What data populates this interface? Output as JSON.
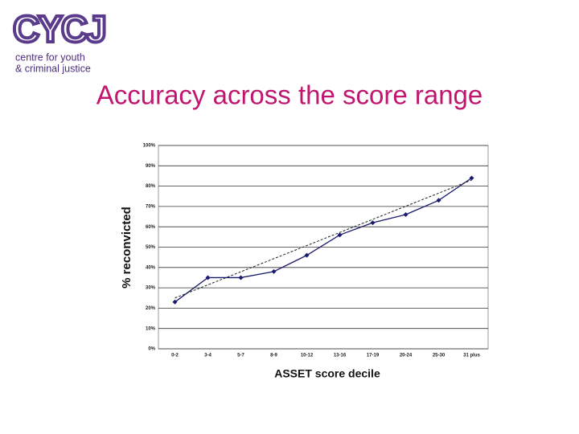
{
  "logo": {
    "mark": "CYCJ",
    "line1": "centre for youth",
    "line2": "& criminal justice"
  },
  "slide_title": "Accuracy across the score range",
  "chart_data": {
    "type": "line",
    "x_label": "ASSET score decile",
    "y_label": "% reconvicted",
    "categories": [
      "0-2",
      "3-4",
      "5-7",
      "8-9",
      "10-12",
      "13-16",
      "17-19",
      "20-24",
      "25-30",
      "31 plus"
    ],
    "series": [
      {
        "color": "#1a1a6e",
        "values": [
          23,
          35,
          35,
          38,
          46,
          56,
          62,
          66,
          73,
          84
        ]
      }
    ],
    "trend_line": {
      "values": [
        25,
        83
      ],
      "color": "#222222",
      "dashed": true
    },
    "ylim": [
      0,
      100
    ],
    "yticks": [
      {
        "value": 0,
        "label": "0%"
      },
      {
        "value": 10,
        "label": "10%"
      },
      {
        "value": 20,
        "label": "20%"
      },
      {
        "value": 30,
        "label": "30%"
      },
      {
        "value": 40,
        "label": "40%"
      },
      {
        "value": 50,
        "label": "50%"
      },
      {
        "value": 60,
        "label": "60%"
      },
      {
        "value": 70,
        "label": "70%"
      },
      {
        "value": 80,
        "label": "80%"
      },
      {
        "value": 90,
        "label": "90%"
      },
      {
        "value": 100,
        "label": "100%"
      }
    ],
    "grid": true
  }
}
